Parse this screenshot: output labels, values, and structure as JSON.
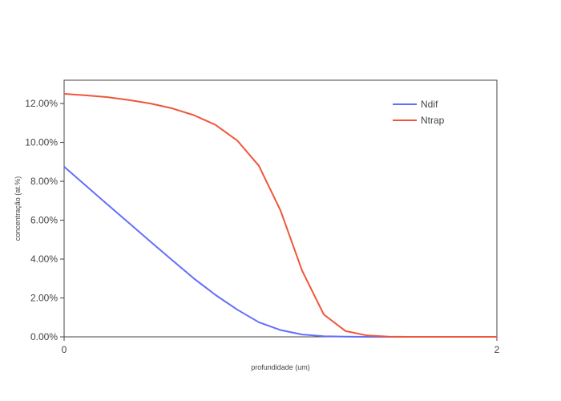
{
  "chart_data": {
    "type": "line",
    "title": "",
    "xlabel": "profundidade (um)",
    "ylabel": "concentração (at.%)",
    "xlim": [
      0,
      2
    ],
    "ylim": [
      0,
      13.2
    ],
    "x_ticks": [
      0,
      2
    ],
    "x_tick_labels": [
      "0",
      "2"
    ],
    "y_ticks": [
      0,
      2,
      4,
      6,
      8,
      10,
      12
    ],
    "y_tick_labels": [
      "0.00%",
      "2.00%",
      "4.00%",
      "6.00%",
      "8.00%",
      "10.00%",
      "12.00%"
    ],
    "grid": false,
    "legend_position": "top-right",
    "x": [
      0,
      0.1,
      0.2,
      0.3,
      0.4,
      0.5,
      0.6,
      0.7,
      0.8,
      0.9,
      1.0,
      1.1,
      1.2,
      1.3,
      1.4,
      1.5,
      1.6,
      1.7,
      1.8,
      1.9,
      2.0
    ],
    "series": [
      {
        "name": "Ndif",
        "color": "#636efa",
        "values": [
          8.75,
          7.78,
          6.81,
          5.85,
          4.89,
          3.94,
          3.0,
          2.15,
          1.4,
          0.75,
          0.35,
          0.12,
          0.03,
          0.01,
          0.0,
          0.0,
          0.0,
          0.0,
          0.0,
          0.0,
          0.0
        ]
      },
      {
        "name": "Ntrap",
        "color": "#ef553b",
        "values": [
          12.5,
          12.42,
          12.33,
          12.18,
          12.0,
          11.75,
          11.4,
          10.9,
          10.1,
          8.8,
          6.5,
          3.4,
          1.15,
          0.3,
          0.07,
          0.01,
          0.0,
          0.0,
          0.0,
          0.0,
          0.0
        ]
      }
    ]
  }
}
